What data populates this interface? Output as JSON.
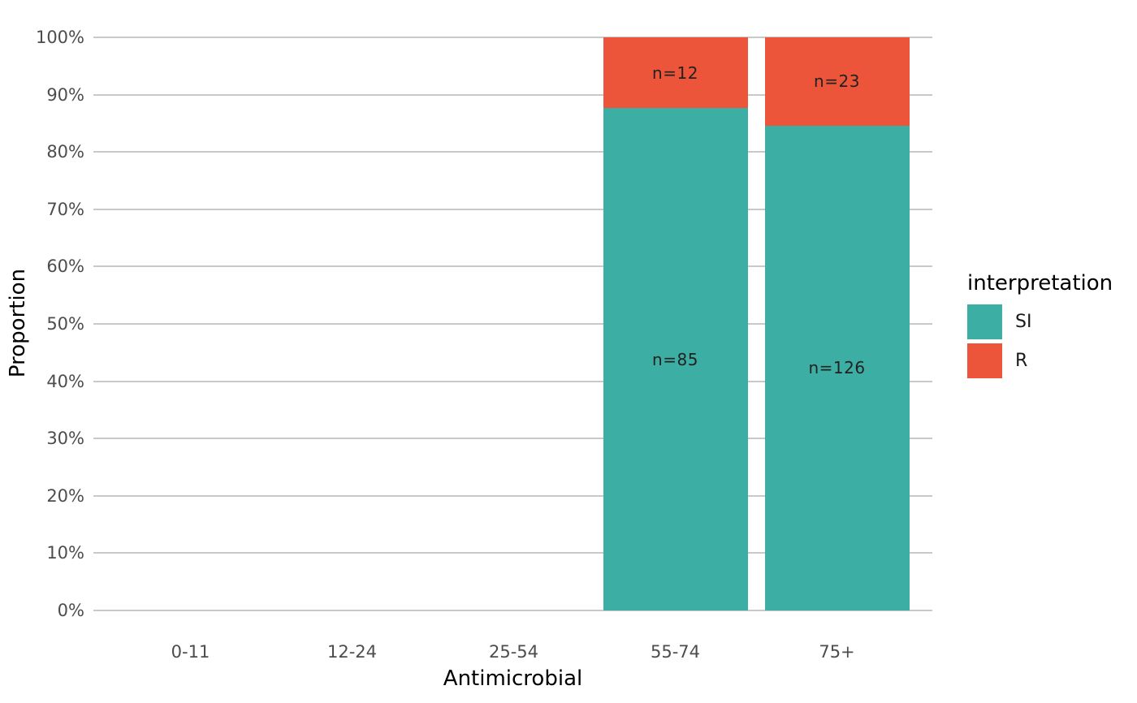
{
  "chart_data": {
    "type": "bar",
    "variant": "stacked-proportion",
    "title": "",
    "xlabel": "Antimicrobial",
    "ylabel": "Proportion",
    "categories": [
      "0-11",
      "12-24",
      "25-54",
      "55-74",
      "75+"
    ],
    "series": [
      {
        "name": "SI",
        "color": "#3CAEA3",
        "counts": [
          null,
          null,
          null,
          85,
          126
        ],
        "labels": [
          null,
          null,
          null,
          "n=85",
          "n=126"
        ]
      },
      {
        "name": "R",
        "color": "#ED553B",
        "counts": [
          null,
          null,
          null,
          12,
          23
        ],
        "labels": [
          null,
          null,
          null,
          "n=12",
          "n=23"
        ]
      }
    ],
    "y_ticks": [
      "0%",
      "10%",
      "20%",
      "30%",
      "40%",
      "50%",
      "60%",
      "70%",
      "80%",
      "90%",
      "100%"
    ],
    "ylim": [
      0,
      1
    ],
    "grid": "horizontal-major-only",
    "legend": {
      "title": "interpretation",
      "position": "right",
      "entries": [
        {
          "label": "SI",
          "color": "#3CAEA3"
        },
        {
          "label": "R",
          "color": "#ED553B"
        }
      ]
    },
    "colors": {
      "background": "#ffffff",
      "gridline": "#c9c9c9",
      "tick_text": "#4d4d4d",
      "axis_title_text": "#000000",
      "bar_label_text": "#222222"
    }
  }
}
